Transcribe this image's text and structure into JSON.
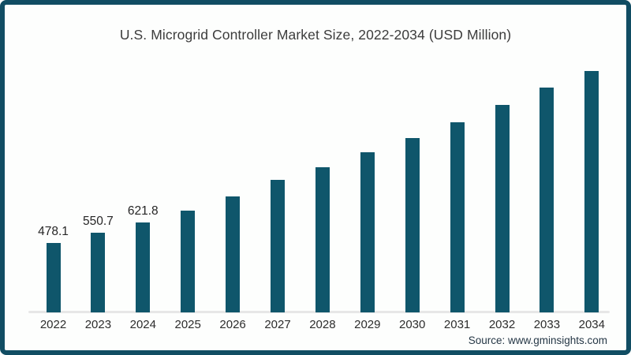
{
  "source": {
    "text": "Source: www.gminsights.com"
  },
  "colors": {
    "bar": "#0f566b",
    "frame_border": "#114d63",
    "axis_line": "#e7e7e7",
    "title_text": "#3c3c3c",
    "tick_text": "#2d2d2d",
    "source_text": "#253746",
    "background": "#fdfefd"
  },
  "chart_data": {
    "type": "bar",
    "title": "U.S. Microgrid Controller Market Size, 2022-2034 (USD Million)",
    "xlabel": "",
    "ylabel": "USD Million",
    "ylim": [
      0,
      1750
    ],
    "grid": false,
    "legend": false,
    "categories": [
      "2022",
      "2023",
      "2024",
      "2025",
      "2026",
      "2027",
      "2028",
      "2029",
      "2030",
      "2031",
      "2032",
      "2033",
      "2034"
    ],
    "values": [
      478.1,
      550.7,
      621.8,
      700,
      798,
      912,
      999,
      1102,
      1200,
      1309,
      1428,
      1548,
      1662
    ],
    "data_labels": [
      "478.1",
      "550.7",
      "621.8",
      null,
      null,
      null,
      null,
      null,
      null,
      null,
      null,
      null,
      null
    ],
    "note": "Only the first three bars carry printed value labels; remaining values estimated from bar heights"
  }
}
